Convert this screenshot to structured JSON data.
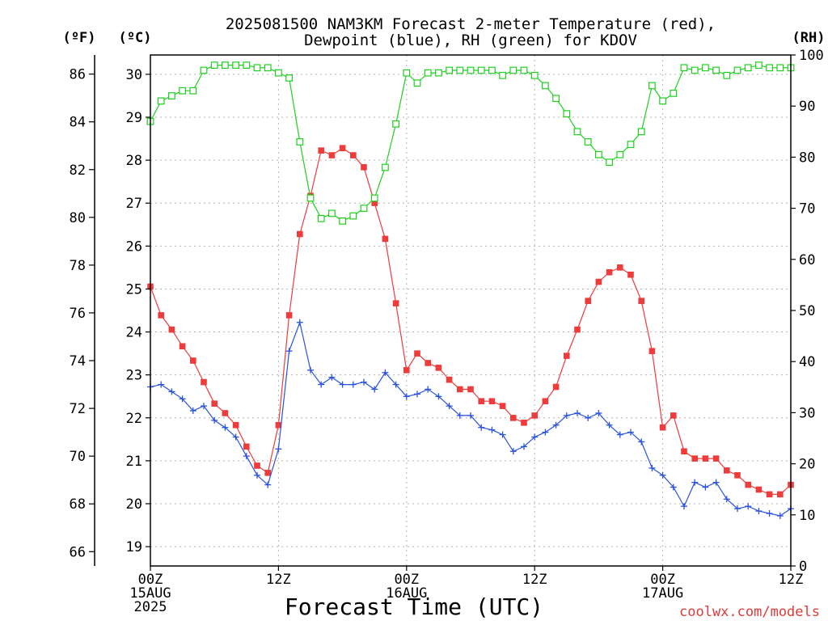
{
  "chart_data": {
    "type": "line",
    "title": [
      "2025081500 NAM3KM Forecast 2-meter Temperature (red),",
      "Dewpoint (blue), RH (green) for KDOV"
    ],
    "xlabel": "Forecast Time (UTC)",
    "credit": "coolwx.com/models",
    "units": {
      "fahrenheit": "(ºF)",
      "celsius": "(ºC)",
      "rh": "(RH)"
    },
    "x_hours": [
      0,
      1,
      2,
      3,
      4,
      5,
      6,
      7,
      8,
      9,
      10,
      11,
      12,
      13,
      14,
      15,
      16,
      17,
      18,
      19,
      20,
      21,
      22,
      23,
      24,
      25,
      26,
      27,
      28,
      29,
      30,
      31,
      32,
      33,
      34,
      35,
      36,
      37,
      38,
      39,
      40,
      41,
      42,
      43,
      44,
      45,
      46,
      47,
      48,
      49,
      50,
      51,
      52,
      53,
      54,
      55,
      56,
      57,
      58,
      59,
      60
    ],
    "x_ticks": [
      {
        "hour": 0,
        "lines": [
          "00Z",
          "15AUG",
          "2025"
        ]
      },
      {
        "hour": 12,
        "lines": [
          "12Z"
        ]
      },
      {
        "hour": 24,
        "lines": [
          "00Z",
          "16AUG"
        ]
      },
      {
        "hour": 36,
        "lines": [
          "12Z"
        ]
      },
      {
        "hour": 48,
        "lines": [
          "00Z",
          "17AUG"
        ]
      },
      {
        "hour": 60,
        "lines": [
          "12Z"
        ]
      }
    ],
    "xlim": [
      0,
      60
    ],
    "ylim_fahrenheit": [
      65.4,
      86.8
    ],
    "ylim_celsius": [
      18.55,
      30.45
    ],
    "ylim_rh": [
      0,
      100
    ],
    "yticks_fahrenheit": [
      "66",
      "68",
      "70",
      "72",
      "74",
      "76",
      "78",
      "80",
      "82",
      "84",
      "86"
    ],
    "yticks_celsius": [
      "19",
      "20",
      "21",
      "22",
      "23",
      "24",
      "25",
      "26",
      "27",
      "28",
      "29",
      "30"
    ],
    "yticks_rh": [
      "0",
      "10",
      "20",
      "30",
      "40",
      "50",
      "60",
      "70",
      "80",
      "90",
      "100"
    ],
    "grid": true,
    "series": [
      {
        "name": "Temperature",
        "color": "#ee3b3b",
        "marker": "filled-square",
        "axis": "fahrenheit",
        "values": [
          77.1,
          75.9,
          75.3,
          74.6,
          74.0,
          73.1,
          72.2,
          71.8,
          71.3,
          70.4,
          69.6,
          69.3,
          71.3,
          75.9,
          79.3,
          80.9,
          82.8,
          82.6,
          82.9,
          82.6,
          82.1,
          80.6,
          79.1,
          76.4,
          73.6,
          74.3,
          73.9,
          73.7,
          73.2,
          72.8,
          72.8,
          72.3,
          72.3,
          72.1,
          71.6,
          71.4,
          71.7,
          72.3,
          72.9,
          74.2,
          75.3,
          76.5,
          77.3,
          77.7,
          77.9,
          77.6,
          76.5,
          74.4,
          71.2,
          71.7,
          70.2,
          69.9,
          69.9,
          69.9,
          69.4,
          69.2,
          68.8,
          68.6,
          68.4,
          68.4,
          68.8
        ]
      },
      {
        "name": "Dewpoint",
        "color": "#2a52e0",
        "marker": "plus",
        "axis": "fahrenheit",
        "values": [
          72.9,
          73.0,
          72.7,
          72.4,
          71.9,
          72.1,
          71.5,
          71.2,
          70.8,
          70.0,
          69.2,
          68.8,
          70.3,
          74.4,
          75.6,
          73.6,
          73.0,
          73.3,
          73.0,
          73.0,
          73.1,
          72.8,
          73.5,
          73.0,
          72.5,
          72.6,
          72.8,
          72.5,
          72.1,
          71.7,
          71.7,
          71.2,
          71.1,
          70.9,
          70.2,
          70.4,
          70.8,
          71.0,
          71.3,
          71.7,
          71.8,
          71.6,
          71.8,
          71.3,
          70.9,
          71.0,
          70.6,
          69.5,
          69.2,
          68.7,
          67.9,
          68.9,
          68.7,
          68.9,
          68.2,
          67.8,
          67.9,
          67.7,
          67.6,
          67.5,
          67.8
        ]
      },
      {
        "name": "RH",
        "color": "#1fd01f",
        "marker": "open-square",
        "axis": "rh",
        "values": [
          87,
          91,
          92,
          93,
          93,
          97,
          98,
          98,
          98,
          98,
          97.5,
          97.5,
          96.5,
          95.5,
          83,
          72,
          68,
          69,
          67.5,
          68.5,
          70,
          72,
          78,
          86.5,
          96.5,
          94.5,
          96.5,
          96.5,
          97,
          97,
          97,
          97,
          97,
          96,
          97,
          97,
          96,
          94,
          91.5,
          88.5,
          85,
          83,
          80.5,
          79,
          80.5,
          82.5,
          85,
          94,
          91,
          92.5,
          97.5,
          97,
          97.5,
          97,
          96,
          97,
          97.5,
          98,
          97.5,
          97.5,
          97.5
        ]
      }
    ]
  }
}
